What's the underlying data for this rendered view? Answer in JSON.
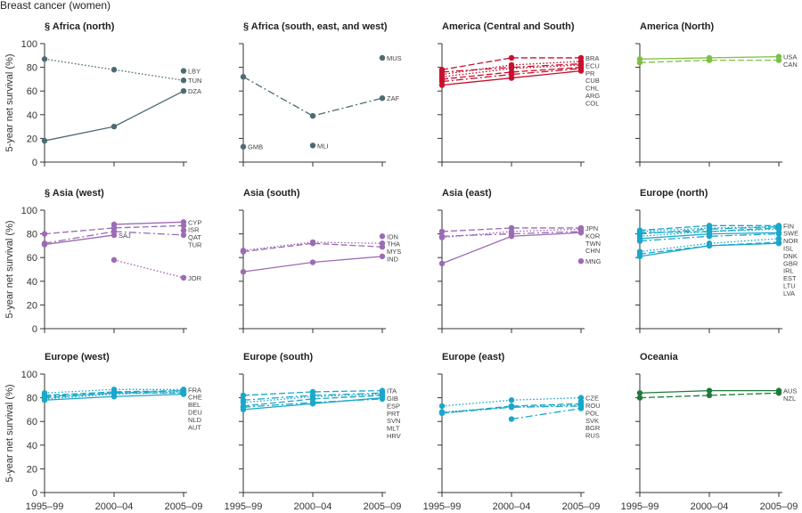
{
  "figure_title": "Breast cancer (women)",
  "ylabel": "5-year net survival (%)",
  "periods": [
    "1995–99",
    "2000–04",
    "2005–09"
  ],
  "yticks": [
    0,
    20,
    40,
    60,
    80,
    100
  ],
  "colors": {
    "africa": "#4d6b73",
    "america_cs": "#c8102e",
    "america_n": "#7dc142",
    "asia": "#9b6bb5",
    "europe": "#1aa7c9",
    "oceania": "#1f7a3a"
  },
  "chart_data": [
    {
      "type": "line",
      "title": "§ Africa (north)",
      "color": "#4d6b73",
      "ylim": [
        0,
        100
      ],
      "categories": [
        "1995–99",
        "2000–04",
        "2005–09"
      ],
      "series": [
        {
          "name": "LBY",
          "values": [
            null,
            null,
            77
          ],
          "dash": "solid"
        },
        {
          "name": "TUN",
          "values": [
            87,
            78,
            69
          ],
          "dash": "dotted"
        },
        {
          "name": "DZA",
          "values": [
            18,
            30,
            60
          ],
          "dash": "solid"
        }
      ]
    },
    {
      "type": "line",
      "title": "§ Africa (south, east, and west)",
      "color": "#4d6b73",
      "ylim": [
        0,
        100
      ],
      "categories": [
        "1995–99",
        "2000–04",
        "2005–09"
      ],
      "series": [
        {
          "name": "MUS",
          "values": [
            null,
            null,
            88
          ],
          "dash": "solid"
        },
        {
          "name": "ZAF",
          "values": [
            72,
            39,
            54
          ],
          "dash": "dashdot"
        },
        {
          "name": "GMB",
          "values": [
            13,
            null,
            null
          ],
          "dash": "solid"
        },
        {
          "name": "MLI",
          "values": [
            null,
            14,
            null
          ],
          "dash": "solid"
        }
      ]
    },
    {
      "type": "line",
      "title": "America (Central and South)",
      "color": "#c8102e",
      "ylim": [
        0,
        100
      ],
      "categories": [
        "1995–99",
        "2000–04",
        "2005–09"
      ],
      "series": [
        {
          "name": "BRA",
          "values": [
            78,
            88,
            88
          ],
          "dash": "dashed"
        },
        {
          "name": "ECU",
          "values": [
            74,
            82,
            85
          ],
          "dash": "dotted"
        },
        {
          "name": "PR",
          "values": [
            76,
            80,
            83
          ],
          "dash": "dashdot"
        },
        {
          "name": "CUB",
          "values": [
            72,
            79,
            82
          ],
          "dash": "dotted"
        },
        {
          "name": "CHL",
          "values": [
            70,
            76,
            80
          ],
          "dash": "dashed"
        },
        {
          "name": "ARG",
          "values": [
            68,
            74,
            79
          ],
          "dash": "dashdot"
        },
        {
          "name": "COL",
          "values": [
            65,
            71,
            77
          ],
          "dash": "solid"
        }
      ]
    },
    {
      "type": "line",
      "title": "America (North)",
      "color": "#7dc142",
      "ylim": [
        0,
        100
      ],
      "categories": [
        "1995–99",
        "2000–04",
        "2005–09"
      ],
      "series": [
        {
          "name": "USA",
          "values": [
            87,
            88,
            89
          ],
          "dash": "solid"
        },
        {
          "name": "CAN",
          "values": [
            84,
            86,
            86
          ],
          "dash": "dashed"
        }
      ]
    },
    {
      "type": "line",
      "title": "§ Asia (west)",
      "color": "#9b6bb5",
      "ylim": [
        0,
        100
      ],
      "categories": [
        "1995–99",
        "2000–04",
        "2005–09"
      ],
      "series": [
        {
          "name": "CYP",
          "values": [
            null,
            88,
            90
          ],
          "dash": "solid"
        },
        {
          "name": "ISR",
          "values": [
            80,
            85,
            87
          ],
          "dash": "dashed"
        },
        {
          "name": "QAT",
          "values": [
            null,
            null,
            83
          ],
          "dash": "solid"
        },
        {
          "name": "TUR",
          "values": [
            72,
            82,
            79
          ],
          "dash": "dashdot"
        },
        {
          "name": "SAJ",
          "values": [
            71,
            79,
            null
          ],
          "dash": "solid"
        },
        {
          "name": "JOR",
          "values": [
            null,
            58,
            43
          ],
          "dash": "dotted"
        }
      ]
    },
    {
      "type": "line",
      "title": "Asia (south)",
      "color": "#9b6bb5",
      "ylim": [
        0,
        100
      ],
      "categories": [
        "1995–99",
        "2000–04",
        "2005–09"
      ],
      "series": [
        {
          "name": "IDN",
          "values": [
            null,
            null,
            78
          ],
          "dash": "solid"
        },
        {
          "name": "THA",
          "values": [
            66,
            73,
            72
          ],
          "dash": "dotted"
        },
        {
          "name": "MYS",
          "values": [
            65,
            72,
            69
          ],
          "dash": "dashed"
        },
        {
          "name": "IND",
          "values": [
            48,
            56,
            61
          ],
          "dash": "solid"
        }
      ]
    },
    {
      "type": "line",
      "title": "Asia (east)",
      "color": "#9b6bb5",
      "ylim": [
        0,
        100
      ],
      "categories": [
        "1995–99",
        "2000–04",
        "2005–09"
      ],
      "series": [
        {
          "name": "JPN",
          "values": [
            82,
            85,
            85
          ],
          "dash": "dashed"
        },
        {
          "name": "KOR",
          "values": [
            77,
            82,
            84
          ],
          "dash": "dotted"
        },
        {
          "name": "TWN",
          "values": [
            78,
            80,
            82
          ],
          "dash": "dashdot"
        },
        {
          "name": "CHN",
          "values": [
            55,
            78,
            81
          ],
          "dash": "solid"
        },
        {
          "name": "MNG",
          "values": [
            null,
            null,
            57
          ],
          "dash": "solid"
        }
      ]
    },
    {
      "type": "line",
      "title": "Europe (north)",
      "color": "#1aa7c9",
      "ylim": [
        0,
        100
      ],
      "categories": [
        "1995–99",
        "2000–04",
        "2005–09"
      ],
      "series": [
        {
          "name": "FIN",
          "values": [
            83,
            87,
            87
          ],
          "dash": "dashed"
        },
        {
          "name": "SWE",
          "values": [
            82,
            85,
            86
          ],
          "dash": "dotted"
        },
        {
          "name": "NOR",
          "values": [
            80,
            84,
            86
          ],
          "dash": "dashdot"
        },
        {
          "name": "ISL",
          "values": [
            81,
            82,
            85
          ],
          "dash": "dashed"
        },
        {
          "name": "DNK",
          "values": [
            78,
            82,
            84
          ],
          "dash": "dotted"
        },
        {
          "name": "GBR",
          "values": [
            76,
            80,
            81
          ],
          "dash": "solid"
        },
        {
          "name": "IRL",
          "values": [
            74,
            78,
            80
          ],
          "dash": "dashdot"
        },
        {
          "name": "EST",
          "values": [
            65,
            72,
            76
          ],
          "dash": "dotted"
        },
        {
          "name": "LTU",
          "values": [
            63,
            70,
            73
          ],
          "dash": "dashed"
        },
        {
          "name": "LVA",
          "values": [
            61,
            70,
            72
          ],
          "dash": "solid"
        }
      ]
    },
    {
      "type": "line",
      "title": "Europe (west)",
      "color": "#1aa7c9",
      "ylim": [
        0,
        100
      ],
      "categories": [
        "1995–99",
        "2000–04",
        "2005–09"
      ],
      "series": [
        {
          "name": "FRA",
          "values": [
            84,
            87,
            87
          ],
          "dash": "dotted"
        },
        {
          "name": "CHE",
          "values": [
            82,
            85,
            86
          ],
          "dash": "dashed"
        },
        {
          "name": "BEL",
          "values": [
            81,
            84,
            86
          ],
          "dash": "dashdot"
        },
        {
          "name": "DEU",
          "values": [
            79,
            83,
            85
          ],
          "dash": "dotted"
        },
        {
          "name": "NLD",
          "values": [
            80,
            84,
            84
          ],
          "dash": "dashed"
        },
        {
          "name": "AUT",
          "values": [
            78,
            81,
            83
          ],
          "dash": "solid"
        }
      ]
    },
    {
      "type": "line",
      "title": "Europe (south)",
      "color": "#1aa7c9",
      "ylim": [
        0,
        100
      ],
      "categories": [
        "1995–99",
        "2000–04",
        "2005–09"
      ],
      "series": [
        {
          "name": "ITA",
          "values": [
            82,
            85,
            86
          ],
          "dash": "dashed"
        },
        {
          "name": "GIB",
          "values": [
            null,
            null,
            85
          ],
          "dash": "solid"
        },
        {
          "name": "ESP",
          "values": [
            78,
            82,
            84
          ],
          "dash": "dashdot"
        },
        {
          "name": "PRT",
          "values": [
            76,
            81,
            83
          ],
          "dash": "dotted"
        },
        {
          "name": "SVN",
          "values": [
            73,
            79,
            82
          ],
          "dash": "dashed"
        },
        {
          "name": "HRV",
          "values": [
            72,
            76,
            79
          ],
          "dash": "dashdot"
        },
        {
          "name": "MLT",
          "values": [
            70,
            75,
            80
          ],
          "dash": "solid"
        }
      ]
    },
    {
      "type": "line",
      "title": "Europe (east)",
      "color": "#1aa7c9",
      "ylim": [
        0,
        100
      ],
      "categories": [
        "1995–99",
        "2000–04",
        "2005–09"
      ],
      "series": [
        {
          "name": "CZE",
          "values": [
            73,
            78,
            80
          ],
          "dash": "dotted"
        },
        {
          "name": "ROU",
          "values": [
            null,
            null,
            77
          ],
          "dash": "solid"
        },
        {
          "name": "POL",
          "values": [
            67,
            73,
            75
          ],
          "dash": "dashed"
        },
        {
          "name": "BGR",
          "values": [
            67,
            72,
            73
          ],
          "dash": "dashdot"
        },
        {
          "name": "SVK",
          "values": [
            68,
            72,
            74
          ],
          "dash": "dotted"
        },
        {
          "name": "RUS",
          "values": [
            null,
            62,
            71
          ],
          "dash": "dashdot"
        }
      ]
    },
    {
      "type": "line",
      "title": "Oceania",
      "color": "#1f7a3a",
      "ylim": [
        0,
        100
      ],
      "categories": [
        "1995–99",
        "2000–04",
        "2005–09"
      ],
      "series": [
        {
          "name": "AUS",
          "values": [
            84,
            86,
            86
          ],
          "dash": "solid"
        },
        {
          "name": "NZL",
          "values": [
            80,
            82,
            84
          ],
          "dash": "dashed"
        }
      ]
    }
  ]
}
